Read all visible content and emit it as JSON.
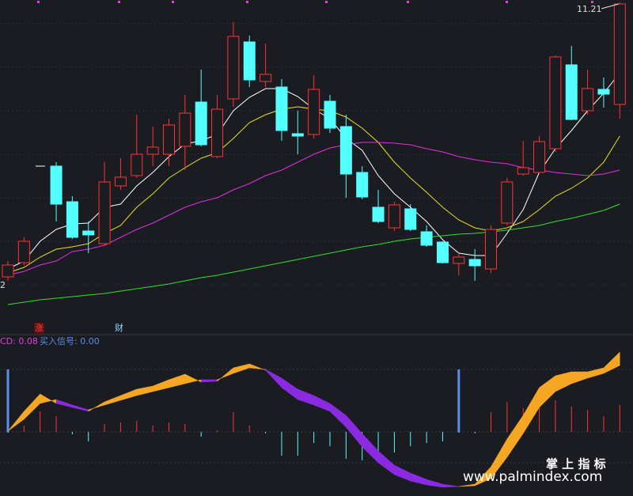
{
  "chart_data": [
    {
      "type": "candlestick",
      "ylim": [
        0,
        420
      ],
      "up_color": "#ff3232",
      "down_color": "#54ffff",
      "open": [
        70,
        88,
        null,
        210,
        165,
        128,
        112,
        185,
        198,
        225,
        225,
        235,
        291,
        222,
        295,
        367,
        317,
        310,
        251,
        250,
        292,
        260,
        202,
        158,
        132,
        156,
        127,
        114,
        87,
        92,
        80,
        138,
        200,
        202,
        232,
        338,
        280,
        307,
        288
      ],
      "close": [
        85,
        115,
        null,
        162,
        120,
        123,
        190,
        196,
        225,
        234,
        262,
        277,
        237,
        282,
        374,
        319,
        326,
        255,
        248,
        307,
        258,
        200,
        171,
        140,
        161,
        130,
        110,
        88,
        95,
        84,
        130,
        190,
        208,
        241,
        348,
        269,
        308,
        301,
        415
      ],
      "high": [
        90,
        120,
        null,
        215,
        172,
        140,
        215,
        220,
        275,
        260,
        270,
        300,
        332,
        300,
        392,
        375,
        365,
        320,
        280,
        325,
        300,
        275,
        210,
        180,
        165,
        162,
        135,
        115,
        102,
        105,
        135,
        195,
        242,
        248,
        350,
        362,
        332,
        322,
        417
      ],
      "low": [
        65,
        85,
        null,
        140,
        118,
        100,
        110,
        180,
        195,
        210,
        210,
        205,
        235,
        220,
        285,
        310,
        310,
        242,
        225,
        245,
        252,
        170,
        168,
        138,
        128,
        128,
        108,
        87,
        72,
        65,
        75,
        135,
        198,
        200,
        228,
        268,
        275,
        284,
        270
      ],
      "lines": [
        {
          "color": "#ffffff",
          "values": [
            80,
            90,
            115,
            130,
            137,
            138,
            158,
            162,
            185,
            202,
            222,
            238,
            242,
            250,
            280,
            297,
            308,
            308,
            298,
            282,
            270,
            245,
            230,
            198,
            175,
            158,
            140,
            117,
            100,
            97,
            97,
            125,
            155,
            202,
            232,
            255,
            280,
            302,
            328
          ]
        },
        {
          "color": "#e8e020",
          "values": [
            75,
            82,
            95,
            105,
            108,
            112,
            125,
            135,
            158,
            175,
            195,
            208,
            220,
            227,
            245,
            265,
            275,
            282,
            285,
            282,
            280,
            272,
            258,
            240,
            215,
            195,
            177,
            158,
            142,
            132,
            128,
            132,
            140,
            155,
            172,
            182,
            195,
            215,
            248
          ]
        },
        {
          "color": "#e030e0",
          "values": [
            72,
            77,
            85,
            90,
            102,
            105,
            110,
            120,
            130,
            138,
            148,
            158,
            165,
            170,
            180,
            188,
            198,
            205,
            215,
            225,
            233,
            237,
            240,
            240,
            239,
            237,
            232,
            228,
            222,
            218,
            215,
            213,
            208,
            205,
            202,
            200,
            198,
            200,
            205
          ]
        },
        {
          "color": "#30e030",
          "values": [
            35,
            38,
            41,
            43,
            45,
            47,
            49,
            52,
            55,
            58,
            61,
            65,
            69,
            72,
            76,
            80,
            84,
            88,
            92,
            96,
            100,
            104,
            108,
            111,
            115,
            118,
            120,
            122,
            124,
            125,
            127,
            129,
            132,
            135,
            140,
            144,
            149,
            154,
            162
          ]
        }
      ],
      "max_label": "11.21",
      "min_label": "2",
      "markers": [
        "涨",
        "财"
      ]
    },
    {
      "type": "macd",
      "ylim": [
        -81,
        121
      ],
      "gridlines": [
        79,
        0,
        -39
      ],
      "label": "CD: 0.08",
      "signal_label": "买入信号: 0.00",
      "up_color": "#f5a623",
      "down_color": "#8a2be2",
      "dif": [
        1,
        26,
        48,
        36,
        31,
        26,
        38,
        46,
        54,
        58,
        66,
        73,
        63,
        64,
        81,
        86,
        78,
        56,
        41,
        34,
        26,
        6,
        -19,
        -39,
        -54,
        -62,
        -67,
        -70,
        -69,
        -66,
        -44,
        -9,
        21,
        56,
        71,
        76,
        76,
        81,
        101
      ],
      "dea": [
        1,
        16,
        36,
        41,
        34,
        28,
        34,
        40,
        46,
        51,
        56,
        61,
        66,
        66,
        74,
        81,
        79,
        68,
        54,
        46,
        36,
        21,
        -2,
        -24,
        -42,
        -52,
        -60,
        -66,
        -69,
        -68,
        -59,
        -32,
        -2,
        31,
        51,
        61,
        68,
        74,
        84
      ],
      "hist": [
        0,
        8,
        26,
        20,
        -3,
        -12,
        10,
        12,
        14,
        8,
        12,
        10,
        -6,
        2,
        25,
        8,
        -2,
        -30,
        -30,
        -14,
        -18,
        -34,
        -36,
        -32,
        -26,
        -18,
        -14,
        -12,
        0,
        -2,
        25,
        38,
        30,
        45,
        40,
        32,
        28,
        20,
        34
      ],
      "signal": [
        79,
        null,
        null,
        null,
        null,
        null,
        null,
        null,
        null,
        null,
        null,
        null,
        null,
        null,
        null,
        null,
        null,
        null,
        null,
        null,
        null,
        null,
        null,
        null,
        null,
        null,
        null,
        null,
        79,
        null,
        null,
        null,
        null,
        null,
        null,
        null,
        null,
        null,
        null
      ]
    }
  ],
  "watermark": {
    "title": "掌 上 指 标",
    "url": "www.palmindex.com"
  }
}
